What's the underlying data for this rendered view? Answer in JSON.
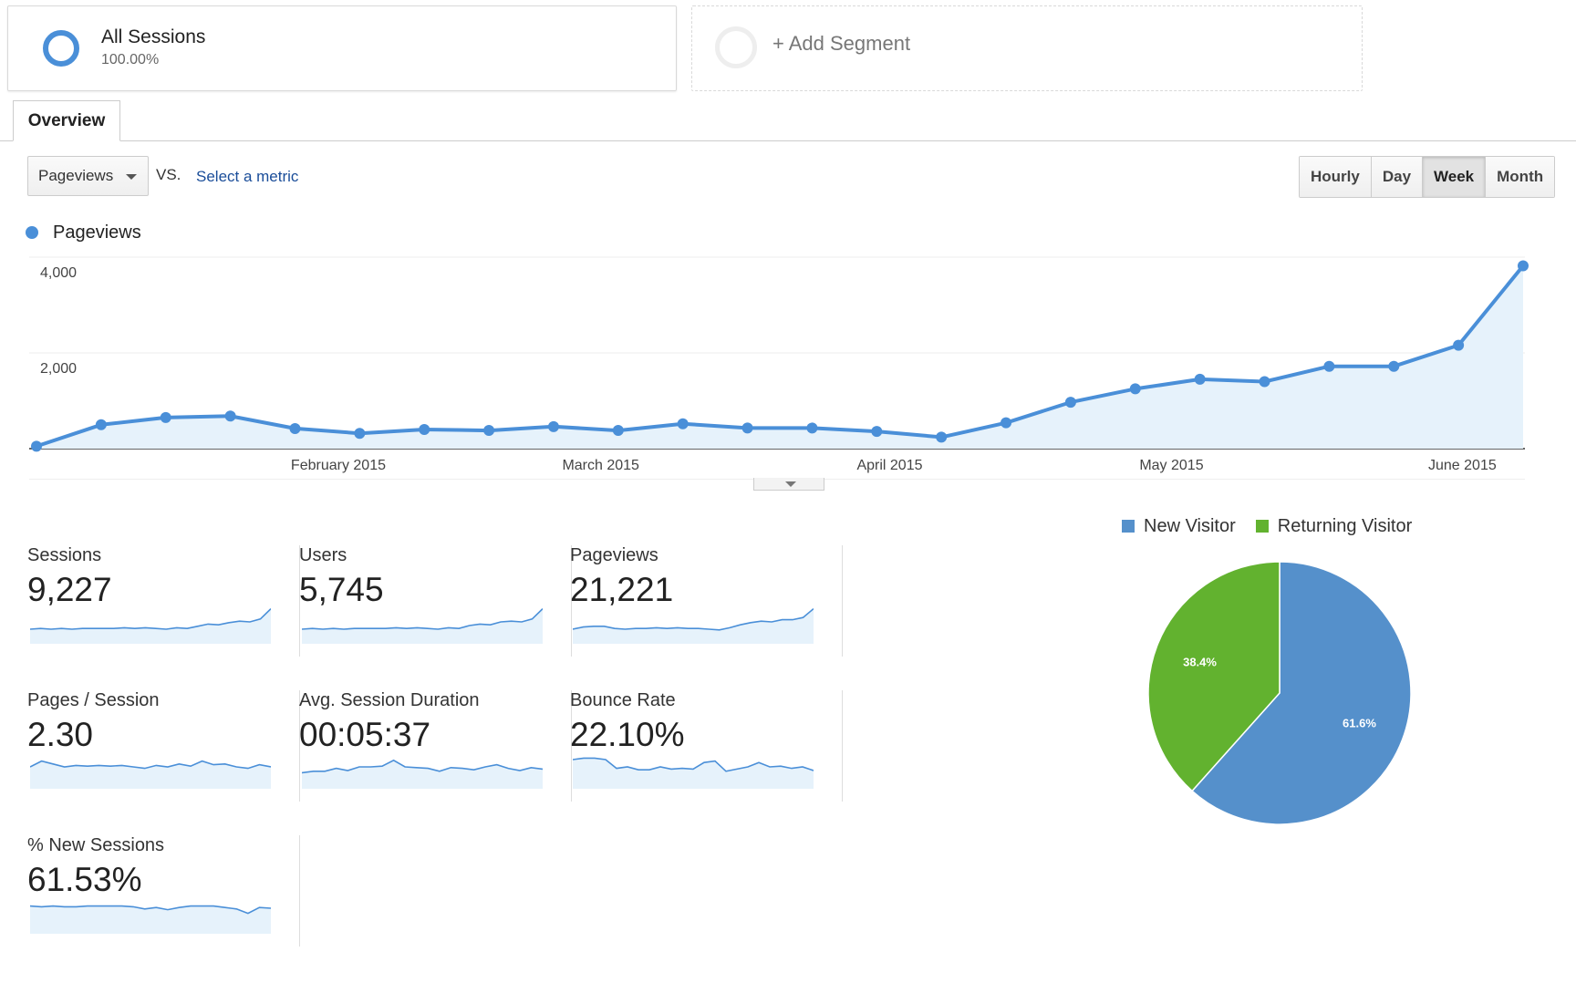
{
  "segments": {
    "all": {
      "title": "All Sessions",
      "subtitle": "100.00%"
    },
    "add": {
      "label": "+ Add Segment"
    }
  },
  "tabs": [
    {
      "label": "Overview"
    }
  ],
  "metric_controls": {
    "primary_metric": "Pageviews",
    "vs_label": "VS.",
    "select_metric_link": "Select a metric",
    "intervals": [
      {
        "label": "Hourly",
        "active": false
      },
      {
        "label": "Day",
        "active": false
      },
      {
        "label": "Week",
        "active": true
      },
      {
        "label": "Month",
        "active": false
      }
    ]
  },
  "colors": {
    "primary": "#4a8fd8",
    "fill": "#e6f2fb",
    "new_visitor": "#5590cb",
    "returning_visitor": "#62b22f"
  },
  "chart_data": [
    {
      "type": "line",
      "series": [
        {
          "name": "Pageviews",
          "values": [
            50,
            500,
            650,
            680,
            420,
            320,
            400,
            380,
            460,
            380,
            520,
            430,
            430,
            360,
            240,
            540,
            970,
            1250,
            1450,
            1400,
            1720,
            1720,
            2160,
            3820
          ]
        }
      ],
      "y_ticks": [
        "4,000",
        "2,000"
      ],
      "ylim": [
        0,
        4000
      ],
      "x_labels": [
        {
          "label": "February 2015",
          "index": 4.67
        },
        {
          "label": "March 2015",
          "index": 8.73
        },
        {
          "label": "April 2015",
          "index": 13.2
        },
        {
          "label": "May 2015",
          "index": 17.56
        },
        {
          "label": "June 2015",
          "index": 22.06
        }
      ],
      "grid": true
    },
    {
      "type": "pie",
      "legend": [
        "New Visitor",
        "Returning Visitor"
      ],
      "values": [
        61.6,
        38.4
      ],
      "labels": [
        "61.6%",
        "38.4%"
      ]
    }
  ],
  "scorecards": [
    {
      "label": "Sessions",
      "value": "9,227",
      "trend": [
        20,
        21,
        20,
        21,
        20,
        21,
        21,
        21,
        21,
        22,
        21,
        22,
        21,
        20,
        22,
        21,
        24,
        27,
        26,
        29,
        31,
        30,
        34,
        48
      ]
    },
    {
      "label": "Users",
      "value": "5,745",
      "trend": [
        20,
        21,
        20,
        21,
        20,
        21,
        21,
        21,
        21,
        22,
        21,
        22,
        21,
        20,
        22,
        21,
        25,
        27,
        26,
        30,
        31,
        30,
        34,
        48
      ]
    },
    {
      "label": "Pageviews",
      "value": "21,221",
      "trend": [
        20,
        23,
        24,
        24,
        21,
        20,
        21,
        21,
        22,
        21,
        22,
        21,
        21,
        20,
        19,
        22,
        26,
        29,
        31,
        30,
        33,
        33,
        36,
        48
      ]
    },
    {
      "label": "Pages / Session",
      "value": "2.30",
      "trend": [
        30,
        38,
        34,
        30,
        32,
        31,
        32,
        31,
        32,
        30,
        28,
        32,
        30,
        34,
        31,
        38,
        33,
        34,
        30,
        28,
        33,
        30
      ]
    },
    {
      "label": "Avg. Session Duration",
      "value": "00:05:37",
      "trend": [
        22,
        24,
        24,
        28,
        25,
        30,
        30,
        31,
        39,
        30,
        29,
        28,
        24,
        29,
        28,
        26,
        30,
        33,
        28,
        25,
        29,
        27
      ]
    },
    {
      "label": "Bounce Rate",
      "value": "22.10%",
      "trend": [
        40,
        42,
        42,
        40,
        28,
        30,
        26,
        26,
        30,
        27,
        28,
        27,
        36,
        38,
        24,
        27,
        30,
        36,
        30,
        31,
        28,
        30,
        25
      ]
    },
    {
      "label": "% New Sessions",
      "value": "61.53%",
      "trend": [
        38,
        37,
        38,
        37,
        37,
        38,
        38,
        38,
        38,
        37,
        34,
        36,
        33,
        36,
        38,
        38,
        38,
        36,
        34,
        28,
        36,
        35
      ]
    }
  ]
}
